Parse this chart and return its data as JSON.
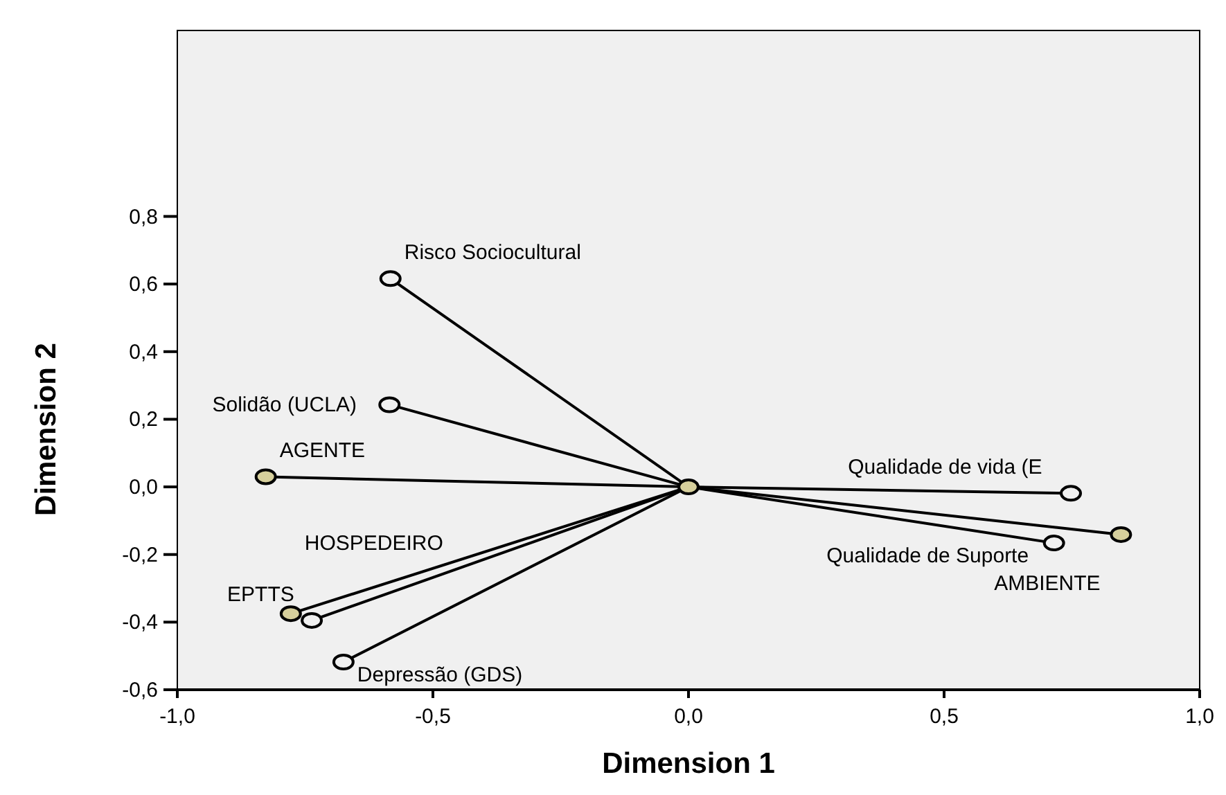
{
  "chart_data": {
    "type": "scatter",
    "xlabel": "Dimension 1",
    "ylabel": "Dimension 2",
    "xlim": [
      -1,
      1
    ],
    "ylim": [
      -0.6,
      1.35
    ],
    "xticks": [
      {
        "value": -1,
        "label": "-1,0"
      },
      {
        "value": -0.5,
        "label": "-0,5"
      },
      {
        "value": 0,
        "label": "0,0"
      },
      {
        "value": 0.5,
        "label": "0,5"
      },
      {
        "value": 1,
        "label": "1,0"
      }
    ],
    "yticks": [
      {
        "value": -0.6,
        "label": "-0,6"
      },
      {
        "value": -0.4,
        "label": "-0,4"
      },
      {
        "value": -0.2,
        "label": "-0,2"
      },
      {
        "value": 0,
        "label": "0,0"
      },
      {
        "value": 0.2,
        "label": "0,2"
      },
      {
        "value": 0.4,
        "label": "0,4"
      },
      {
        "value": 0.6,
        "label": "0,6"
      },
      {
        "value": 0.8,
        "label": "0,8"
      }
    ],
    "grid": false,
    "legend": false,
    "series": [
      {
        "type": "line",
        "color": "#000000",
        "x": [
          0,
          -0.583
        ],
        "values": [
          0,
          0.616
        ]
      },
      {
        "type": "line",
        "color": "#000000",
        "x": [
          0,
          -0.585
        ],
        "values": [
          0,
          0.243
        ]
      },
      {
        "type": "line",
        "color": "#000000",
        "x": [
          0,
          -0.827
        ],
        "values": [
          0,
          0.03
        ]
      },
      {
        "type": "line",
        "color": "#000000",
        "x": [
          0,
          -0.778
        ],
        "values": [
          0,
          -0.375
        ]
      },
      {
        "type": "line",
        "color": "#000000",
        "x": [
          0,
          -0.737
        ],
        "values": [
          0,
          -0.395
        ]
      },
      {
        "type": "line",
        "color": "#000000",
        "x": [
          0,
          -0.675
        ],
        "values": [
          0,
          -0.518
        ]
      },
      {
        "type": "line",
        "color": "#000000",
        "x": [
          0,
          0.748
        ],
        "values": [
          0,
          -0.019
        ]
      },
      {
        "type": "line",
        "color": "#000000",
        "x": [
          0,
          0.715
        ],
        "values": [
          0,
          -0.166
        ]
      },
      {
        "type": "line",
        "color": "#000000",
        "x": [
          0,
          0.846
        ],
        "values": [
          0,
          -0.141
        ]
      },
      {
        "type": "scatter",
        "marker": "circle",
        "color": "#f0f0f0",
        "x": [
          -0.583,
          -0.585,
          -0.737,
          -0.675,
          0.748,
          0.715
        ],
        "values": [
          0.616,
          0.243,
          -0.395,
          -0.518,
          -0.019,
          -0.166
        ]
      },
      {
        "type": "scatter",
        "marker": "circle",
        "color": "#d6cf9c",
        "x": [
          0,
          -0.827,
          -0.778,
          0.846
        ],
        "values": [
          0,
          0.03,
          -0.375,
          -0.141
        ]
      }
    ],
    "annotations": [
      {
        "text": "Risco Sociocultural",
        "x": -0.583,
        "y": 0.616
      },
      {
        "text": "Solidão (UCLA)",
        "x": -0.585,
        "y": 0.243
      },
      {
        "text": "AGENTE",
        "x": -0.827,
        "y": 0.03
      },
      {
        "text": "HOSPEDEIRO",
        "x": -0.778,
        "y": -0.375
      },
      {
        "text": "EPTTS",
        "x": -0.737,
        "y": -0.395
      },
      {
        "text": "Depressão (GDS)",
        "x": -0.675,
        "y": -0.518
      },
      {
        "text": "Qualidade de vida (E",
        "x": 0.748,
        "y": -0.019
      },
      {
        "text": "Qualidade de Suporte",
        "x": 0.715,
        "y": -0.166
      },
      {
        "text": "AMBIENTE",
        "x": 0.846,
        "y": -0.141
      }
    ]
  }
}
